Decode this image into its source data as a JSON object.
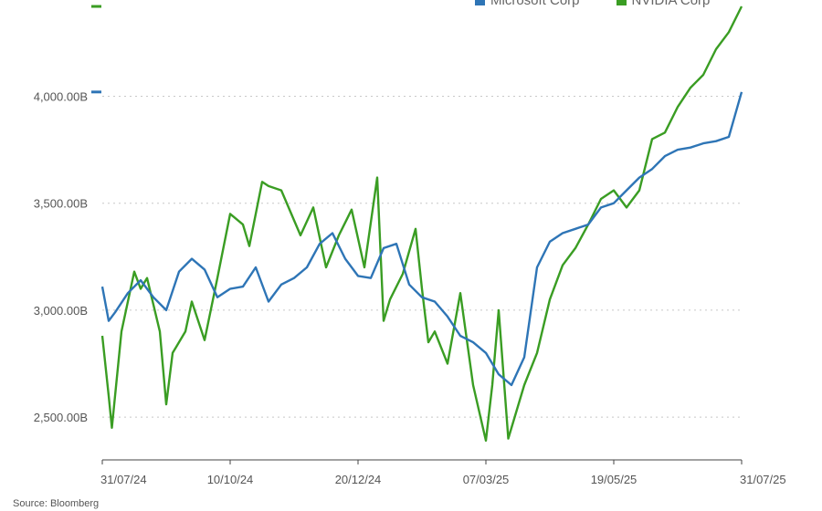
{
  "chart_data": {
    "type": "line",
    "title": "",
    "xlabel": "",
    "ylabel": "",
    "ylim": [
      2300,
      4450
    ],
    "y_tick_values": [
      2500,
      3000,
      3500,
      4000
    ],
    "y_tick_labels": [
      "2,500.00B",
      "3,000.00B",
      "3,500.00B",
      "4,000.00B"
    ],
    "x_tick_labels": [
      "31/07/24",
      "10/10/24",
      "20/12/24",
      "07/03/25",
      "19/05/25",
      "31/07/25"
    ],
    "x_tick_positions": [
      0,
      0.2,
      0.4,
      0.6,
      0.8,
      1.0
    ],
    "legend": [
      {
        "name": "Microsoft Corp",
        "color": "#2e75b6"
      },
      {
        "name": "NVIDIA Corp",
        "color": "#3a9d23"
      }
    ],
    "series": [
      {
        "name": "Microsoft Corp",
        "color": "#2e75b6",
        "last_value_marker": 4020,
        "x": [
          0,
          0.01,
          0.02,
          0.04,
          0.06,
          0.08,
          0.1,
          0.12,
          0.14,
          0.16,
          0.18,
          0.2,
          0.22,
          0.24,
          0.26,
          0.28,
          0.3,
          0.32,
          0.34,
          0.36,
          0.38,
          0.4,
          0.42,
          0.44,
          0.46,
          0.48,
          0.5,
          0.52,
          0.54,
          0.56,
          0.58,
          0.6,
          0.62,
          0.64,
          0.66,
          0.68,
          0.7,
          0.72,
          0.74,
          0.76,
          0.78,
          0.8,
          0.82,
          0.84,
          0.86,
          0.88,
          0.9,
          0.92,
          0.94,
          0.96,
          0.98,
          1.0
        ],
        "values": [
          3110,
          2950,
          2990,
          3080,
          3140,
          3060,
          3000,
          3180,
          3240,
          3190,
          3060,
          3100,
          3110,
          3200,
          3040,
          3120,
          3150,
          3200,
          3310,
          3360,
          3240,
          3160,
          3150,
          3290,
          3310,
          3120,
          3060,
          3040,
          2970,
          2880,
          2850,
          2800,
          2700,
          2650,
          2780,
          3200,
          3320,
          3360,
          3380,
          3400,
          3480,
          3500,
          3560,
          3620,
          3660,
          3720,
          3750,
          3760,
          3780,
          3790,
          3810,
          4020
        ]
      },
      {
        "name": "NVIDIA Corp",
        "color": "#3a9d23",
        "last_value_marker": 4420,
        "x": [
          0,
          0.01,
          0.015,
          0.03,
          0.05,
          0.06,
          0.07,
          0.09,
          0.1,
          0.11,
          0.13,
          0.14,
          0.16,
          0.18,
          0.2,
          0.22,
          0.23,
          0.25,
          0.26,
          0.28,
          0.3,
          0.31,
          0.33,
          0.35,
          0.37,
          0.39,
          0.41,
          0.43,
          0.44,
          0.45,
          0.47,
          0.49,
          0.5,
          0.51,
          0.52,
          0.54,
          0.56,
          0.58,
          0.6,
          0.61,
          0.62,
          0.635,
          0.66,
          0.68,
          0.7,
          0.72,
          0.74,
          0.76,
          0.78,
          0.8,
          0.82,
          0.84,
          0.86,
          0.88,
          0.9,
          0.92,
          0.94,
          0.96,
          0.98,
          1.0
        ],
        "values": [
          2880,
          2600,
          2450,
          2900,
          3180,
          3100,
          3150,
          2900,
          2560,
          2800,
          2900,
          3040,
          2860,
          3150,
          3450,
          3400,
          3300,
          3600,
          3580,
          3560,
          3420,
          3350,
          3480,
          3200,
          3350,
          3470,
          3200,
          3620,
          2950,
          3050,
          3170,
          3380,
          3100,
          2850,
          2900,
          2750,
          3080,
          2650,
          2390,
          2650,
          3000,
          2400,
          2650,
          2800,
          3050,
          3210,
          3290,
          3400,
          3520,
          3560,
          3480,
          3560,
          3800,
          3830,
          3950,
          4040,
          4100,
          4220,
          4300,
          4420
        ]
      }
    ],
    "source": "Source: Bloomberg"
  }
}
